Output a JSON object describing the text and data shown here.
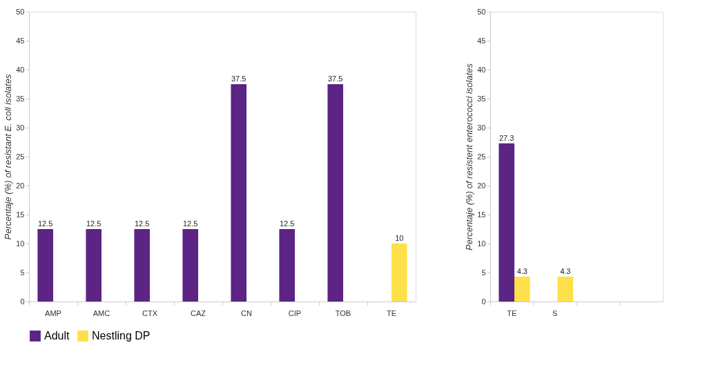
{
  "chart_data": [
    {
      "type": "bar",
      "ylabel": "Percentaje (%) of resistant  E. coli isolates",
      "categories": [
        "AMP",
        "AMC",
        "CTX",
        "CAZ",
        "CN",
        "CIP",
        "TOB",
        "TE"
      ],
      "series": [
        {
          "name": "Adult",
          "color": "#5b2485",
          "values": [
            12.5,
            12.5,
            12.5,
            12.5,
            37.5,
            12.5,
            37.5,
            null
          ]
        },
        {
          "name": "Nestling DP",
          "color": "#fde04a",
          "values": [
            null,
            null,
            null,
            null,
            null,
            null,
            null,
            10
          ]
        }
      ],
      "ylim": [
        0,
        50
      ],
      "yticks": [
        0,
        5,
        10,
        15,
        20,
        25,
        30,
        35,
        40,
        45,
        50
      ],
      "data_labels": true,
      "legend": "bottom",
      "grid": false
    },
    {
      "type": "bar",
      "ylabel": "Percentaje (%) of resistent enterococci isolates",
      "categories": [
        "TE",
        "S",
        null,
        null
      ],
      "series": [
        {
          "name": "Adult",
          "color": "#5b2485",
          "values": [
            27.3,
            null,
            null,
            null
          ]
        },
        {
          "name": "Nestling DP",
          "color": "#fde04a",
          "values": [
            4.3,
            4.3,
            null,
            null
          ]
        }
      ],
      "ylim": [
        0,
        50
      ],
      "yticks": [
        0,
        5,
        10,
        15,
        20,
        25,
        30,
        35,
        40,
        45,
        50
      ],
      "data_labels": true,
      "grid": false
    }
  ]
}
